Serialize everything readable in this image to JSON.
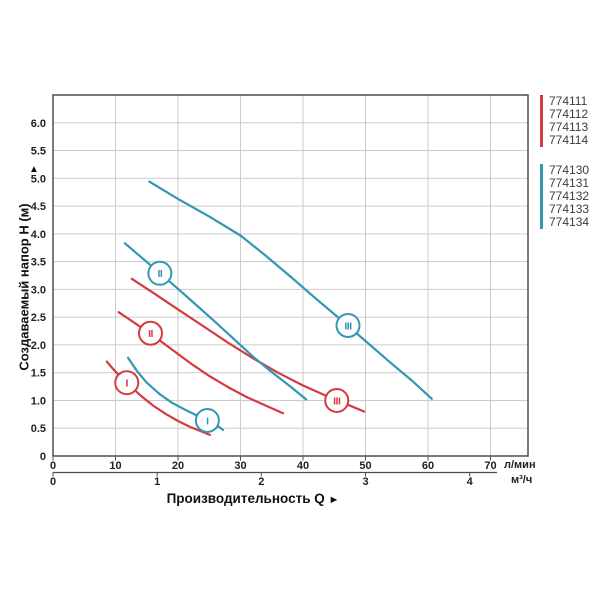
{
  "colors": {
    "red": "#d6393f",
    "blue": "#3397b4",
    "grid": "#cbcbcb",
    "axis": "#4d4d4d",
    "text": "#222222"
  },
  "legend": {
    "groups": [
      {
        "color": "#d6393f",
        "items": [
          "774111",
          "774112",
          "774113",
          "774114"
        ]
      },
      {
        "color": "#3397b4",
        "items": [
          "774130",
          "774131",
          "774132",
          "774133",
          "774134"
        ]
      }
    ]
  },
  "chart_data": {
    "type": "line",
    "ylabel": "Создаваемый напор H (м)",
    "ylabel_arrow": "▲",
    "xlabel": "Производительность Q",
    "xlabel_arrow": "►",
    "x_units_primary": "л/мин",
    "x_units_secondary": "м³/ч",
    "xlim_lmin": [
      0,
      76
    ],
    "ylim": [
      0,
      6.5
    ],
    "grid": true,
    "x_ticks_lmin": {
      "values": [
        0,
        10,
        20,
        30,
        40,
        50,
        60,
        70
      ],
      "labels": [
        "0",
        "10",
        "20",
        "30",
        "40",
        "50",
        "60",
        "70"
      ]
    },
    "x_ticks_m3h": {
      "values_lmin": [
        0,
        16.667,
        33.333,
        50,
        66.667
      ],
      "labels": [
        "0",
        "1",
        "2",
        "3",
        "4"
      ]
    },
    "y_ticks": {
      "values": [
        0,
        0.5,
        1,
        1.5,
        2,
        2.5,
        3,
        3.5,
        4,
        4.5,
        5,
        5.5,
        6
      ],
      "labels": [
        "0",
        "0.5",
        "1.0",
        "1.5",
        "2.0",
        "2.5",
        "3.0",
        "3.5",
        "4.0",
        "4.5",
        "5.0",
        "5.5",
        "6.0"
      ]
    },
    "series": [
      {
        "family": "774111-774114",
        "speed": "I",
        "color": "#d6393f",
        "marker_at": [
          11.8,
          1.32
        ],
        "points": [
          [
            8.6,
            1.7
          ],
          [
            10,
            1.52
          ],
          [
            12,
            1.3
          ],
          [
            14,
            1.09
          ],
          [
            16,
            0.91
          ],
          [
            18,
            0.76
          ],
          [
            20,
            0.63
          ],
          [
            22,
            0.52
          ],
          [
            24,
            0.43
          ],
          [
            25.1,
            0.38
          ]
        ]
      },
      {
        "family": "774111-774114",
        "speed": "II",
        "color": "#d6393f",
        "marker_at": [
          15.6,
          2.21
        ],
        "points": [
          [
            10.5,
            2.59
          ],
          [
            13,
            2.4
          ],
          [
            16,
            2.17
          ],
          [
            19,
            1.92
          ],
          [
            22,
            1.67
          ],
          [
            25,
            1.44
          ],
          [
            28,
            1.24
          ],
          [
            31,
            1.06
          ],
          [
            34,
            0.91
          ],
          [
            36.8,
            0.77
          ]
        ]
      },
      {
        "family": "774111-774114",
        "speed": "III",
        "color": "#d6393f",
        "marker_at": [
          45.4,
          1.0
        ],
        "points": [
          [
            12.6,
            3.19
          ],
          [
            16,
            2.94
          ],
          [
            20,
            2.64
          ],
          [
            24,
            2.34
          ],
          [
            28,
            2.04
          ],
          [
            32,
            1.76
          ],
          [
            36,
            1.5
          ],
          [
            40,
            1.27
          ],
          [
            44,
            1.07
          ],
          [
            47,
            0.93
          ],
          [
            49.8,
            0.8
          ]
        ]
      },
      {
        "family": "774130-774134",
        "speed": "I",
        "color": "#3397b4",
        "marker_at": [
          24.7,
          0.64
        ],
        "points": [
          [
            12.0,
            1.77
          ],
          [
            13.5,
            1.52
          ],
          [
            15,
            1.32
          ],
          [
            17,
            1.12
          ],
          [
            19,
            0.96
          ],
          [
            21,
            0.84
          ],
          [
            23,
            0.73
          ],
          [
            25,
            0.62
          ],
          [
            26.5,
            0.53
          ],
          [
            27.2,
            0.47
          ]
        ]
      },
      {
        "family": "774130-774134",
        "speed": "II",
        "color": "#3397b4",
        "marker_at": [
          17.1,
          3.29
        ],
        "points": [
          [
            11.5,
            3.83
          ],
          [
            14,
            3.59
          ],
          [
            17,
            3.3
          ],
          [
            20,
            3.01
          ],
          [
            23,
            2.71
          ],
          [
            26,
            2.41
          ],
          [
            29,
            2.1
          ],
          [
            32,
            1.79
          ],
          [
            35,
            1.51
          ],
          [
            38,
            1.25
          ],
          [
            40.5,
            1.02
          ]
        ]
      },
      {
        "family": "774130-774134",
        "speed": "III",
        "color": "#3397b4",
        "marker_at": [
          47.2,
          2.35
        ],
        "points": [
          [
            15.4,
            4.94
          ],
          [
            20,
            4.63
          ],
          [
            25,
            4.31
          ],
          [
            30,
            3.97
          ],
          [
            34,
            3.61
          ],
          [
            38,
            3.23
          ],
          [
            42,
            2.84
          ],
          [
            46,
            2.46
          ],
          [
            50,
            2.07
          ],
          [
            54,
            1.68
          ],
          [
            57.5,
            1.35
          ],
          [
            60.6,
            1.03
          ]
        ]
      }
    ]
  }
}
